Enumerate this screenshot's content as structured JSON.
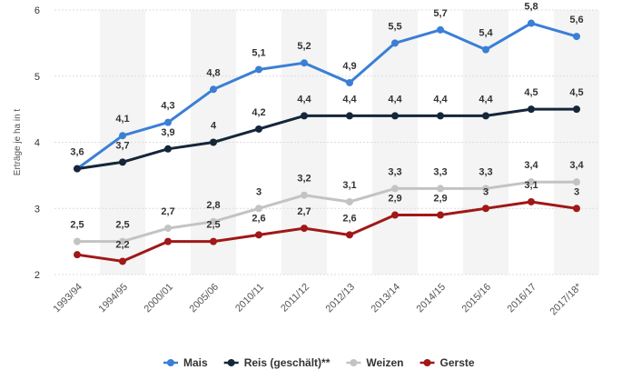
{
  "chart_data": {
    "type": "line",
    "ylabel": "Erträge je ha in t",
    "ylim": [
      2,
      6
    ],
    "yticks": [
      "2",
      "3",
      "4",
      "5",
      "6"
    ],
    "categories": [
      "1993/94",
      "1994/95",
      "2000/01",
      "2005/06",
      "2010/11",
      "2011/12",
      "2012/13",
      "2013/14",
      "2014/15",
      "2015/16",
      "2016/17",
      "2017/18*"
    ],
    "series": [
      {
        "name": "Mais",
        "color": "#3a7fd5",
        "values": [
          3.6,
          4.1,
          4.3,
          4.8,
          5.1,
          5.2,
          4.9,
          5.5,
          5.7,
          5.4,
          5.8,
          5.6
        ],
        "labels": [
          "3,6",
          "4,1",
          "4,3",
          "4,8",
          "5,1",
          "5,2",
          "4,9",
          "5,5",
          "5,7",
          "5,4",
          "5,8",
          "5,6"
        ]
      },
      {
        "name": "Reis (geschält)**",
        "color": "#15263a",
        "values": [
          3.6,
          3.7,
          3.9,
          4.0,
          4.2,
          4.4,
          4.4,
          4.4,
          4.4,
          4.4,
          4.5,
          4.5
        ],
        "labels": [
          "",
          "3,7",
          "3,9",
          "4",
          "4,2",
          "4,4",
          "4,4",
          "4,4",
          "4,4",
          "4,4",
          "4,5",
          "4,5"
        ]
      },
      {
        "name": "Weizen",
        "color": "#c3c3c3",
        "values": [
          2.5,
          2.5,
          2.7,
          2.8,
          3.0,
          3.2,
          3.1,
          3.3,
          3.3,
          3.3,
          3.4,
          3.4
        ],
        "labels": [
          "2,5",
          "2,5",
          "2,7",
          "2,8",
          "3",
          "3,2",
          "3,1",
          "3,3",
          "3,3",
          "3,3",
          "3,4",
          "3,4"
        ]
      },
      {
        "name": "Gerste",
        "color": "#a01818",
        "values": [
          2.3,
          2.2,
          2.5,
          2.5,
          2.6,
          2.7,
          2.6,
          2.9,
          2.9,
          3.0,
          3.1,
          3.0
        ],
        "labels": [
          "",
          "2,2",
          "",
          "2,5",
          "2,6",
          "2,7",
          "2,6",
          "2,9",
          "2,9",
          "3",
          "3,1",
          "3"
        ]
      }
    ],
    "legend": "bottom",
    "grid": true
  }
}
